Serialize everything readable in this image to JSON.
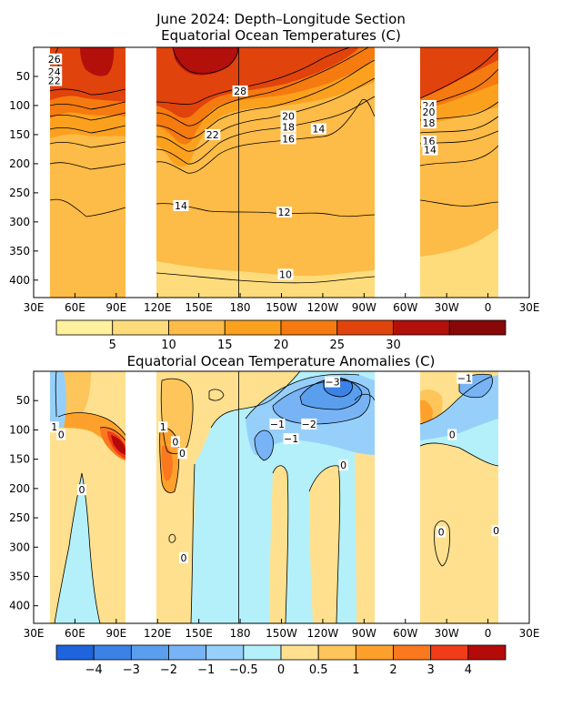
{
  "chart_data": [
    {
      "type": "heatmap",
      "title_line1": "June 2024: Depth–Longitude Section",
      "title_line2": "Equatorial Ocean Temperatures (C)",
      "units": "C",
      "x_ticks": [
        "30E",
        "60E",
        "90E",
        "120E",
        "150E",
        "180",
        "150W",
        "120W",
        "90W",
        "60W",
        "30W",
        "0",
        "30E"
      ],
      "y_ticks": [
        "50",
        "100",
        "150",
        "200",
        "250",
        "300",
        "350",
        "400"
      ],
      "ylim": [
        430,
        0
      ],
      "grid": false,
      "levels": [
        5,
        10,
        15,
        20,
        25,
        30
      ],
      "colorbar_labels": [
        "5",
        "10",
        "15",
        "20",
        "25",
        "30"
      ],
      "colors": [
        "#fff19e",
        "#fedc7c",
        "#fdbb47",
        "#fca11e",
        "#f57a0f",
        "#e1430c",
        "#b30f0b",
        "#880708"
      ],
      "land_gaps": [
        "100E–120E",
        "80W–45W",
        "10E–30E"
      ],
      "contour_labels": [
        {
          "text": "26",
          "lon": "45E",
          "depth": 20
        },
        {
          "text": "24",
          "lon": "45E",
          "depth": 42
        },
        {
          "text": "22",
          "lon": "45E",
          "depth": 57
        },
        {
          "text": "28",
          "lon": "180",
          "depth": 75
        },
        {
          "text": "22",
          "lon": "160E",
          "depth": 150
        },
        {
          "text": "20",
          "lon": "145W",
          "depth": 118
        },
        {
          "text": "18",
          "lon": "145W",
          "depth": 137
        },
        {
          "text": "16",
          "lon": "145W",
          "depth": 157
        },
        {
          "text": "14",
          "lon": "123W",
          "depth": 140
        },
        {
          "text": "14",
          "lon": "137E",
          "depth": 272
        },
        {
          "text": "12",
          "lon": "148W",
          "depth": 283
        },
        {
          "text": "10",
          "lon": "147W",
          "depth": 390
        },
        {
          "text": "24",
          "lon": "43W",
          "depth": 100
        },
        {
          "text": "20",
          "lon": "43W",
          "depth": 111
        },
        {
          "text": "18",
          "lon": "43W",
          "depth": 130
        },
        {
          "text": "16",
          "lon": "43W",
          "depth": 161
        },
        {
          "text": "14",
          "lon": "42W",
          "depth": 176
        }
      ]
    },
    {
      "type": "heatmap",
      "title": "Equatorial Ocean Temperature Anomalies (C)",
      "units": "C",
      "x_ticks": [
        "30E",
        "60E",
        "90E",
        "120E",
        "150E",
        "180",
        "150W",
        "120W",
        "90W",
        "60W",
        "30W",
        "0",
        "30E"
      ],
      "y_ticks": [
        "50",
        "100",
        "150",
        "200",
        "250",
        "300",
        "350",
        "400"
      ],
      "ylim": [
        430,
        0
      ],
      "grid": false,
      "levels": [
        -4,
        -3,
        -2,
        -1,
        -0.5,
        0,
        0.5,
        1,
        2,
        3,
        4
      ],
      "colorbar_labels": [
        "−4",
        "−3",
        "−2",
        "−1",
        "−0.5",
        "0",
        "0.5",
        "1",
        "2",
        "3",
        "4"
      ],
      "colors": [
        "#1f64dc",
        "#3c82e6",
        "#5a9eee",
        "#78b4f5",
        "#96d0fa",
        "#b4f0fa",
        "#fee08e",
        "#fec55a",
        "#fda12c",
        "#fa781e",
        "#f03c19",
        "#b40a0a"
      ],
      "land_gaps": [
        "100E–120E",
        "80W–45W",
        "10E–30E"
      ],
      "contour_labels": [
        {
          "text": "−3",
          "lon": "113W",
          "depth": 18
        },
        {
          "text": "−1",
          "lon": "17W",
          "depth": 12
        },
        {
          "text": "−1",
          "lon": "153W",
          "depth": 90
        },
        {
          "text": "−2",
          "lon": "130W",
          "depth": 90
        },
        {
          "text": "−1",
          "lon": "143W",
          "depth": 115
        },
        {
          "text": "1",
          "lon": "45E",
          "depth": 95
        },
        {
          "text": "0",
          "lon": "50E",
          "depth": 108
        },
        {
          "text": "1",
          "lon": "124E",
          "depth": 95
        },
        {
          "text": "0",
          "lon": "133E",
          "depth": 120
        },
        {
          "text": "0",
          "lon": "138E",
          "depth": 140
        },
        {
          "text": "0",
          "lon": "105W",
          "depth": 160
        },
        {
          "text": "0",
          "lon": "26W",
          "depth": 108
        },
        {
          "text": "0",
          "lon": "65E",
          "depth": 202
        },
        {
          "text": "0",
          "lon": "34W",
          "depth": 274
        },
        {
          "text": "0",
          "lon": "6E",
          "depth": 272
        },
        {
          "text": "0",
          "lon": "139E",
          "depth": 318
        }
      ]
    }
  ]
}
